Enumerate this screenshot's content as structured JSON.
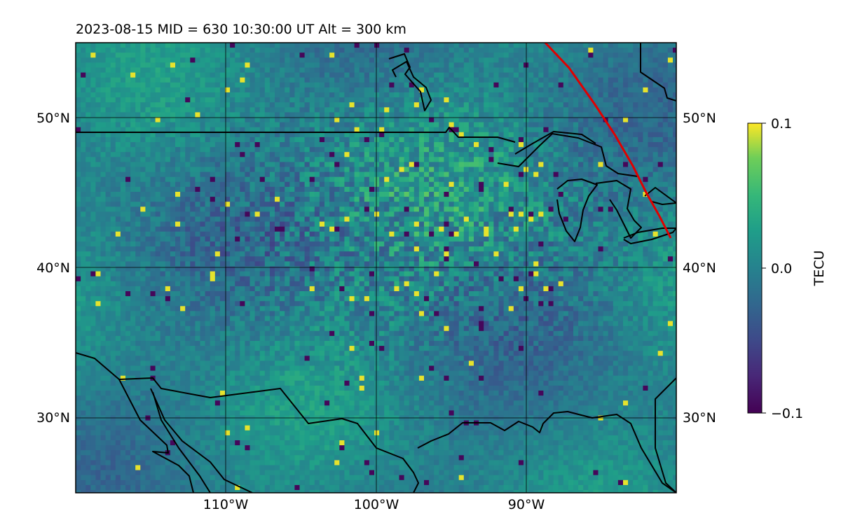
{
  "title": "2023-08-15  MID = 630    10:30:00  UT  Alt = 300 km",
  "map": {
    "lon_range": [
      -120,
      -80
    ],
    "lat_range": [
      25,
      55
    ],
    "lat_ticks": [
      {
        "value": 50,
        "label": "50°N"
      },
      {
        "value": 40,
        "label": "40°N"
      },
      {
        "value": 30,
        "label": "30°N"
      }
    ],
    "lon_ticks": [
      {
        "value": -110,
        "label": "110°W"
      },
      {
        "value": -100,
        "label": "100°W"
      },
      {
        "value": -90,
        "label": "90°W"
      }
    ],
    "field": "detrended TEC perturbation map (viridis colormap)",
    "terminator_line_color": "#e00000",
    "coastline_color": "#000000"
  },
  "colorbar": {
    "label": "TECU",
    "min": -0.1,
    "max": 0.1,
    "ticks": [
      {
        "value": 0.1,
        "label": "0.1"
      },
      {
        "value": 0.0,
        "label": "0.0"
      },
      {
        "value": -0.1,
        "label": "−0.1"
      }
    ],
    "colormap": "viridis"
  }
}
